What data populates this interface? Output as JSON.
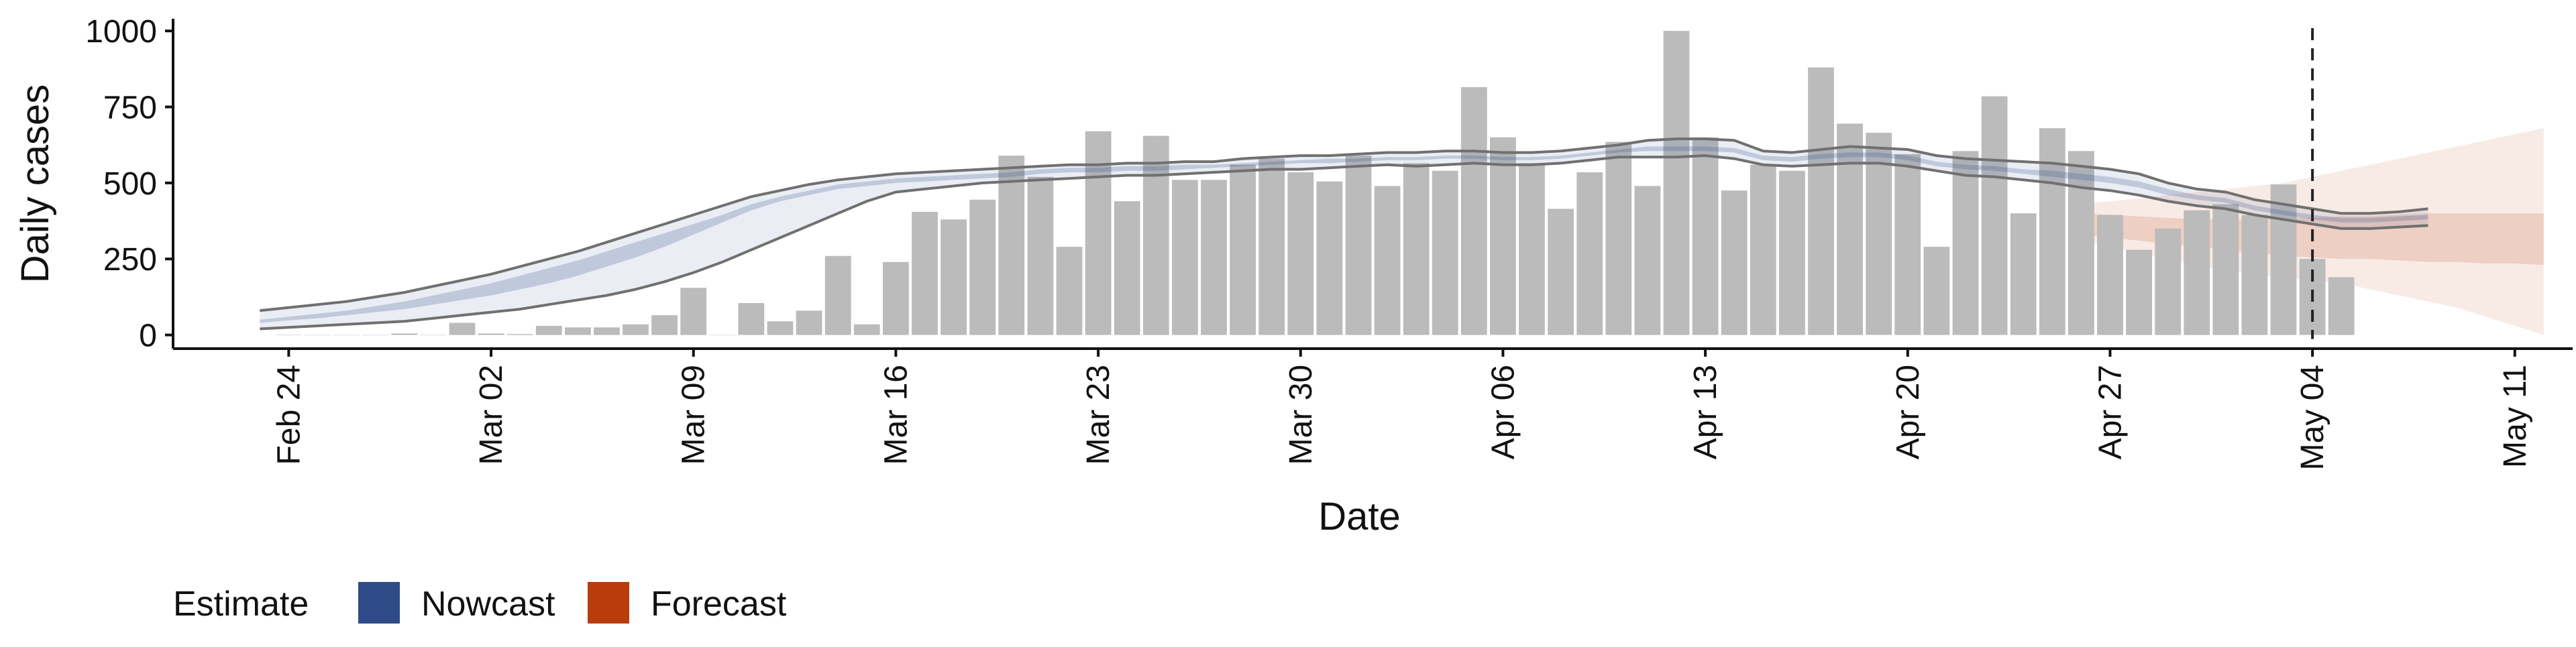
{
  "chart_data": {
    "type": "bar",
    "xlabel": "Date",
    "ylabel": "Daily cases",
    "x_range": [
      "2020-02-20",
      "2020-05-13"
    ],
    "ylim": [
      -45,
      1040
    ],
    "y_ticks": [
      0,
      250,
      500,
      750,
      1000
    ],
    "x_ticks": [
      {
        "date": "2020-02-24",
        "label": "Feb 24"
      },
      {
        "date": "2020-03-02",
        "label": "Mar 02"
      },
      {
        "date": "2020-03-09",
        "label": "Mar 09"
      },
      {
        "date": "2020-03-16",
        "label": "Mar 16"
      },
      {
        "date": "2020-03-23",
        "label": "Mar 23"
      },
      {
        "date": "2020-03-30",
        "label": "Mar 30"
      },
      {
        "date": "2020-04-06",
        "label": "Apr 06"
      },
      {
        "date": "2020-04-13",
        "label": "Apr 13"
      },
      {
        "date": "2020-04-20",
        "label": "Apr 20"
      },
      {
        "date": "2020-04-27",
        "label": "Apr 27"
      },
      {
        "date": "2020-05-04",
        "label": "May 04"
      },
      {
        "date": "2020-05-11",
        "label": "May 11"
      }
    ],
    "grid": false,
    "legend": {
      "title": "Estimate",
      "placement": "bottom-left",
      "items": [
        {
          "name": "Nowcast",
          "color": "#2f4b88"
        },
        {
          "name": "Forecast",
          "color": "#b83c0c"
        }
      ]
    },
    "reported_cases": {
      "color": "#bbbbbb",
      "start_date": "2020-02-24",
      "values": [
        0,
        0,
        0,
        0,
        5,
        0,
        40,
        5,
        3,
        30,
        25,
        25,
        35,
        65,
        155,
        0,
        105,
        45,
        80,
        260,
        35,
        240,
        405,
        380,
        445,
        590,
        520,
        290,
        670,
        440,
        655,
        510,
        510,
        560,
        580,
        535,
        505,
        590,
        490,
        565,
        540,
        815,
        650,
        565,
        415,
        535,
        635,
        490,
        1000,
        650,
        475,
        560,
        540,
        880,
        695,
        665,
        595,
        290,
        605,
        785,
        400,
        680,
        605,
        395,
        280,
        350,
        410,
        430,
        395,
        495,
        250,
        190
      ]
    },
    "forecast_date": "2020-05-04",
    "nowcast": {
      "color": "#2f4b88",
      "start_date": "2020-02-23",
      "outer_upper": [
        80,
        90,
        100,
        110,
        125,
        140,
        160,
        180,
        200,
        225,
        250,
        275,
        305,
        335,
        365,
        395,
        425,
        455,
        475,
        495,
        510,
        520,
        530,
        535,
        540,
        545,
        550,
        555,
        560,
        560,
        565,
        565,
        570,
        570,
        580,
        585,
        590,
        590,
        595,
        600,
        600,
        605,
        605,
        600,
        600,
        605,
        615,
        625,
        640,
        645,
        645,
        640,
        605,
        600,
        610,
        620,
        615,
        610,
        590,
        580,
        575,
        570,
        565,
        555,
        545,
        530,
        500,
        480,
        470,
        445,
        430,
        415,
        400,
        400,
        405,
        415
      ],
      "inner_upper": [
        50,
        60,
        70,
        80,
        95,
        110,
        130,
        150,
        170,
        195,
        220,
        245,
        275,
        305,
        335,
        365,
        395,
        430,
        455,
        475,
        495,
        505,
        515,
        520,
        525,
        530,
        535,
        545,
        550,
        550,
        555,
        555,
        560,
        560,
        565,
        570,
        575,
        580,
        580,
        585,
        585,
        590,
        590,
        585,
        585,
        590,
        600,
        610,
        620,
        620,
        620,
        615,
        590,
        585,
        595,
        600,
        600,
        590,
        570,
        560,
        555,
        545,
        540,
        530,
        520,
        505,
        480,
        460,
        450,
        425,
        410,
        395,
        385,
        385,
        390,
        395
      ],
      "inner_lower": [
        40,
        48,
        55,
        65,
        75,
        85,
        100,
        115,
        130,
        150,
        170,
        195,
        225,
        255,
        290,
        330,
        370,
        410,
        440,
        460,
        480,
        490,
        500,
        505,
        510,
        515,
        520,
        530,
        535,
        535,
        540,
        540,
        545,
        550,
        555,
        560,
        565,
        565,
        570,
        575,
        575,
        580,
        580,
        575,
        575,
        580,
        590,
        600,
        605,
        605,
        605,
        600,
        575,
        570,
        580,
        585,
        585,
        575,
        555,
        545,
        540,
        530,
        520,
        510,
        500,
        485,
        460,
        445,
        435,
        410,
        395,
        380,
        370,
        370,
        375,
        380
      ],
      "outer_lower": [
        20,
        25,
        30,
        35,
        40,
        45,
        55,
        65,
        75,
        85,
        100,
        115,
        130,
        150,
        175,
        205,
        240,
        280,
        320,
        360,
        400,
        440,
        470,
        480,
        490,
        500,
        505,
        510,
        515,
        520,
        525,
        525,
        530,
        535,
        540,
        545,
        545,
        550,
        555,
        560,
        555,
        560,
        565,
        560,
        560,
        565,
        575,
        585,
        585,
        585,
        590,
        580,
        560,
        555,
        560,
        565,
        565,
        555,
        540,
        525,
        520,
        510,
        500,
        485,
        475,
        460,
        440,
        425,
        415,
        395,
        380,
        365,
        350,
        350,
        355,
        360
      ]
    },
    "forecast": {
      "color": "#b83c0c",
      "start_date": "2020-04-26",
      "outer_upper": [
        430,
        440,
        450,
        460,
        470,
        480,
        490,
        500,
        520,
        540,
        560,
        580,
        600,
        620,
        640,
        660,
        680
      ],
      "inner_upper": [
        400,
        395,
        390,
        385,
        380,
        380,
        380,
        385,
        385,
        390,
        390,
        395,
        400,
        400,
        400,
        400,
        400
      ],
      "inner_lower": [
        330,
        320,
        310,
        300,
        290,
        280,
        270,
        260,
        255,
        250,
        250,
        245,
        240,
        240,
        235,
        235,
        230
      ],
      "outer_lower": [
        310,
        290,
        270,
        250,
        230,
        210,
        200,
        190,
        180,
        170,
        150,
        130,
        110,
        90,
        60,
        30,
        0
      ]
    }
  }
}
